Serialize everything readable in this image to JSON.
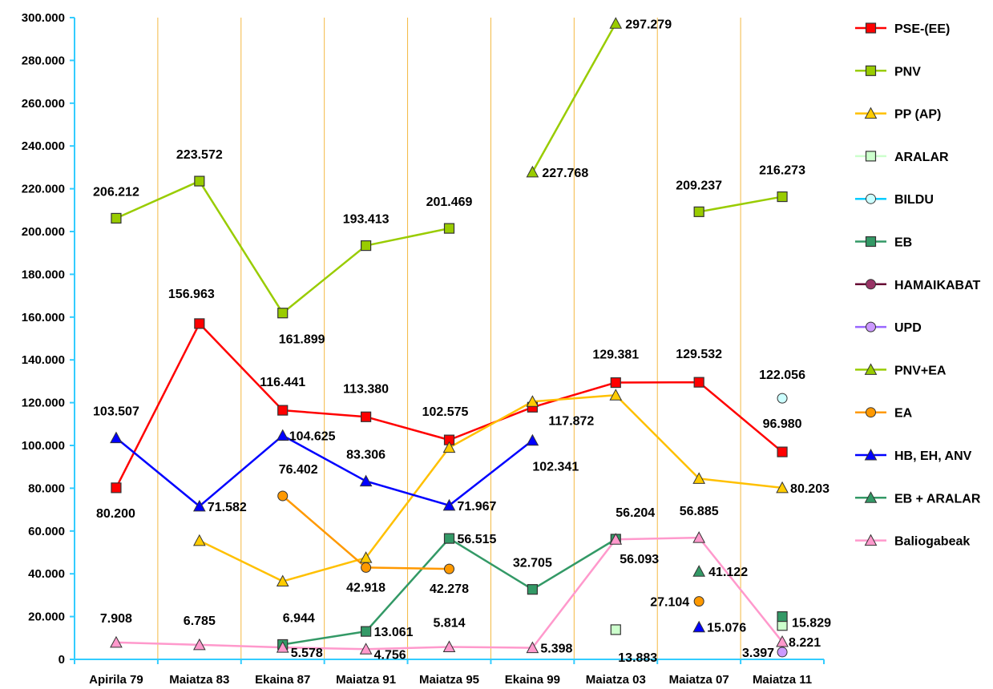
{
  "chart_data": {
    "type": "line",
    "title": "",
    "xlabel": "",
    "ylabel": "",
    "ylim": [
      0,
      300000
    ],
    "grid": "vertical",
    "legend_position": "right",
    "categories": [
      "Apirila 79",
      "Maiatza 83",
      "Ekaina 87",
      "Maiatza 91",
      "Maiatza 95",
      "Ekaina 99",
      "Maiatza 03",
      "Maiatza 07",
      "Maiatza 11"
    ],
    "y_ticks": [
      "0",
      "20.000",
      "40.000",
      "60.000",
      "80.000",
      "100.000",
      "120.000",
      "140.000",
      "160.000",
      "180.000",
      "200.000",
      "220.000",
      "240.000",
      "260.000",
      "280.000",
      "300.000"
    ],
    "series": [
      {
        "name": "PSE-(EE)",
        "color": "#FF0000",
        "fill": "#FF0000",
        "marker": "square",
        "values": [
          80200,
          156963,
          116441,
          113380,
          102575,
          117872,
          129381,
          129532,
          96980
        ],
        "labels": [
          "80.200",
          "156.963",
          "116.441",
          "113.380",
          "102.575",
          "117.872",
          "129.381",
          "129.532",
          "96.980"
        ]
      },
      {
        "name": "PNV",
        "color": "#99CC00",
        "fill": "#99CC00",
        "marker": "square",
        "values": [
          206212,
          223572,
          161899,
          193413,
          201469,
          null,
          null,
          209237,
          216273
        ],
        "labels": [
          "206.212",
          "223.572",
          "161.899",
          "193.413",
          "201.469",
          "",
          "",
          "209.237",
          "216.273"
        ]
      },
      {
        "name": "PP (AP)",
        "color": "#FFC000",
        "fill": "#FFCC00",
        "marker": "triangle",
        "values": [
          null,
          55500,
          36500,
          47500,
          99000,
          120500,
          123500,
          84500,
          80203
        ],
        "labels": [
          "",
          "",
          "",
          "",
          "",
          "",
          "",
          "",
          "80.203"
        ]
      },
      {
        "name": "ARALAR",
        "color": "#CCFFCC",
        "fill": "#CCFFCC",
        "marker": "square",
        "values": [
          null,
          null,
          null,
          null,
          null,
          null,
          13883,
          null,
          15829
        ],
        "labels": [
          "",
          "",
          "",
          "",
          "",
          "",
          "13.883",
          "",
          "15.829"
        ]
      },
      {
        "name": "BILDU",
        "color": "#00CCFF",
        "fill": "#CCFFFF",
        "marker": "circle",
        "values": [
          null,
          null,
          null,
          null,
          null,
          null,
          null,
          null,
          122056
        ],
        "labels": [
          "",
          "",
          "",
          "",
          "",
          "",
          "",
          "",
          "122.056"
        ]
      },
      {
        "name": "EB",
        "color": "#339966",
        "fill": "#339966",
        "marker": "square",
        "values": [
          null,
          null,
          6944,
          13061,
          56515,
          32705,
          56204,
          null,
          20000
        ],
        "labels": [
          "",
          "",
          "6.944",
          "13.061",
          "56.515",
          "32.705",
          "56.204",
          "",
          ""
        ]
      },
      {
        "name": "HAMAIKABAT",
        "color": "#660033",
        "fill": "#993366",
        "marker": "circle",
        "values": [
          null,
          null,
          null,
          null,
          null,
          null,
          null,
          null,
          null
        ],
        "labels": [
          "",
          "",
          "",
          "",
          "",
          "",
          "",
          "",
          ""
        ]
      },
      {
        "name": "UPD",
        "color": "#9966FF",
        "fill": "#CC99FF",
        "marker": "circle",
        "values": [
          null,
          null,
          null,
          null,
          null,
          null,
          null,
          null,
          3397
        ],
        "labels": [
          "",
          "",
          "",
          "",
          "",
          "",
          "",
          "",
          "3.397"
        ]
      },
      {
        "name": "PNV+EA",
        "color": "#99CC00",
        "fill": "#99CC00",
        "marker": "triangle",
        "values": [
          null,
          null,
          null,
          null,
          null,
          227768,
          297279,
          null,
          null
        ],
        "labels": [
          "",
          "",
          "",
          "",
          "",
          "227.768",
          "297.279",
          "",
          ""
        ]
      },
      {
        "name": "EA",
        "color": "#FF9900",
        "fill": "#FF9900",
        "marker": "circle",
        "values": [
          null,
          null,
          76402,
          42918,
          42278,
          null,
          null,
          27104,
          null
        ],
        "labels": [
          "",
          "",
          "76.402",
          "42.918",
          "42.278",
          "",
          "",
          "27.104",
          ""
        ]
      },
      {
        "name": "HB, EH, ANV",
        "color": "#0000FF",
        "fill": "#0000FF",
        "marker": "triangle",
        "values": [
          103507,
          71582,
          104625,
          83306,
          71967,
          102341,
          null,
          15076,
          null
        ],
        "labels": [
          "103.507",
          "71.582",
          "104.625",
          "83.306",
          "71.967",
          "102.341",
          "",
          "15.076",
          ""
        ]
      },
      {
        "name": "EB + ARALAR",
        "color": "#339966",
        "fill": "#339966",
        "marker": "triangle",
        "values": [
          null,
          null,
          null,
          null,
          null,
          null,
          null,
          41122,
          null
        ],
        "labels": [
          "",
          "",
          "",
          "",
          "",
          "",
          "",
          "41.122",
          ""
        ]
      },
      {
        "name": "Baliogabeak",
        "color": "#FF99CC",
        "fill": "#FF99CC",
        "marker": "triangle",
        "values": [
          7908,
          6785,
          5578,
          4756,
          5814,
          5398,
          56093,
          56885,
          8221
        ],
        "labels": [
          "7.908",
          "6.785",
          "5.578",
          "4.756",
          "5.814",
          "5.398",
          "56.093",
          "56.885",
          "8.221"
        ]
      }
    ]
  }
}
